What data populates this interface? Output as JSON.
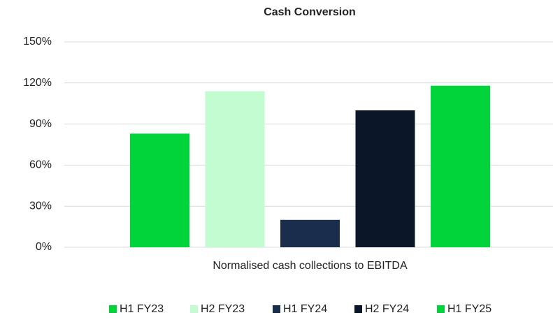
{
  "chart_data": {
    "type": "bar",
    "title": "Cash Conversion",
    "categories": [
      "Normalised cash collections to EBITDA"
    ],
    "series": [
      {
        "name": "H1 FY23",
        "color": "#00d43a",
        "values": [
          83
        ]
      },
      {
        "name": "H2 FY23",
        "color": "#c3fcd0",
        "values": [
          114
        ]
      },
      {
        "name": "H1 FY24",
        "color": "#1b2d4d",
        "values": [
          20
        ]
      },
      {
        "name": "H2 FY24",
        "color": "#0b1628",
        "values": [
          100
        ]
      },
      {
        "name": "H1 FY25",
        "color": "#00d43a",
        "values": [
          118
        ]
      }
    ],
    "ylim": [
      0,
      150
    ],
    "yticks": [
      {
        "value": 0,
        "label": "0%"
      },
      {
        "value": 30,
        "label": "30%"
      },
      {
        "value": 60,
        "label": "60%"
      },
      {
        "value": 90,
        "label": "90%"
      },
      {
        "value": 120,
        "label": "120%"
      },
      {
        "value": 150,
        "label": "150%"
      }
    ],
    "grid": true,
    "legend": "bottom"
  }
}
